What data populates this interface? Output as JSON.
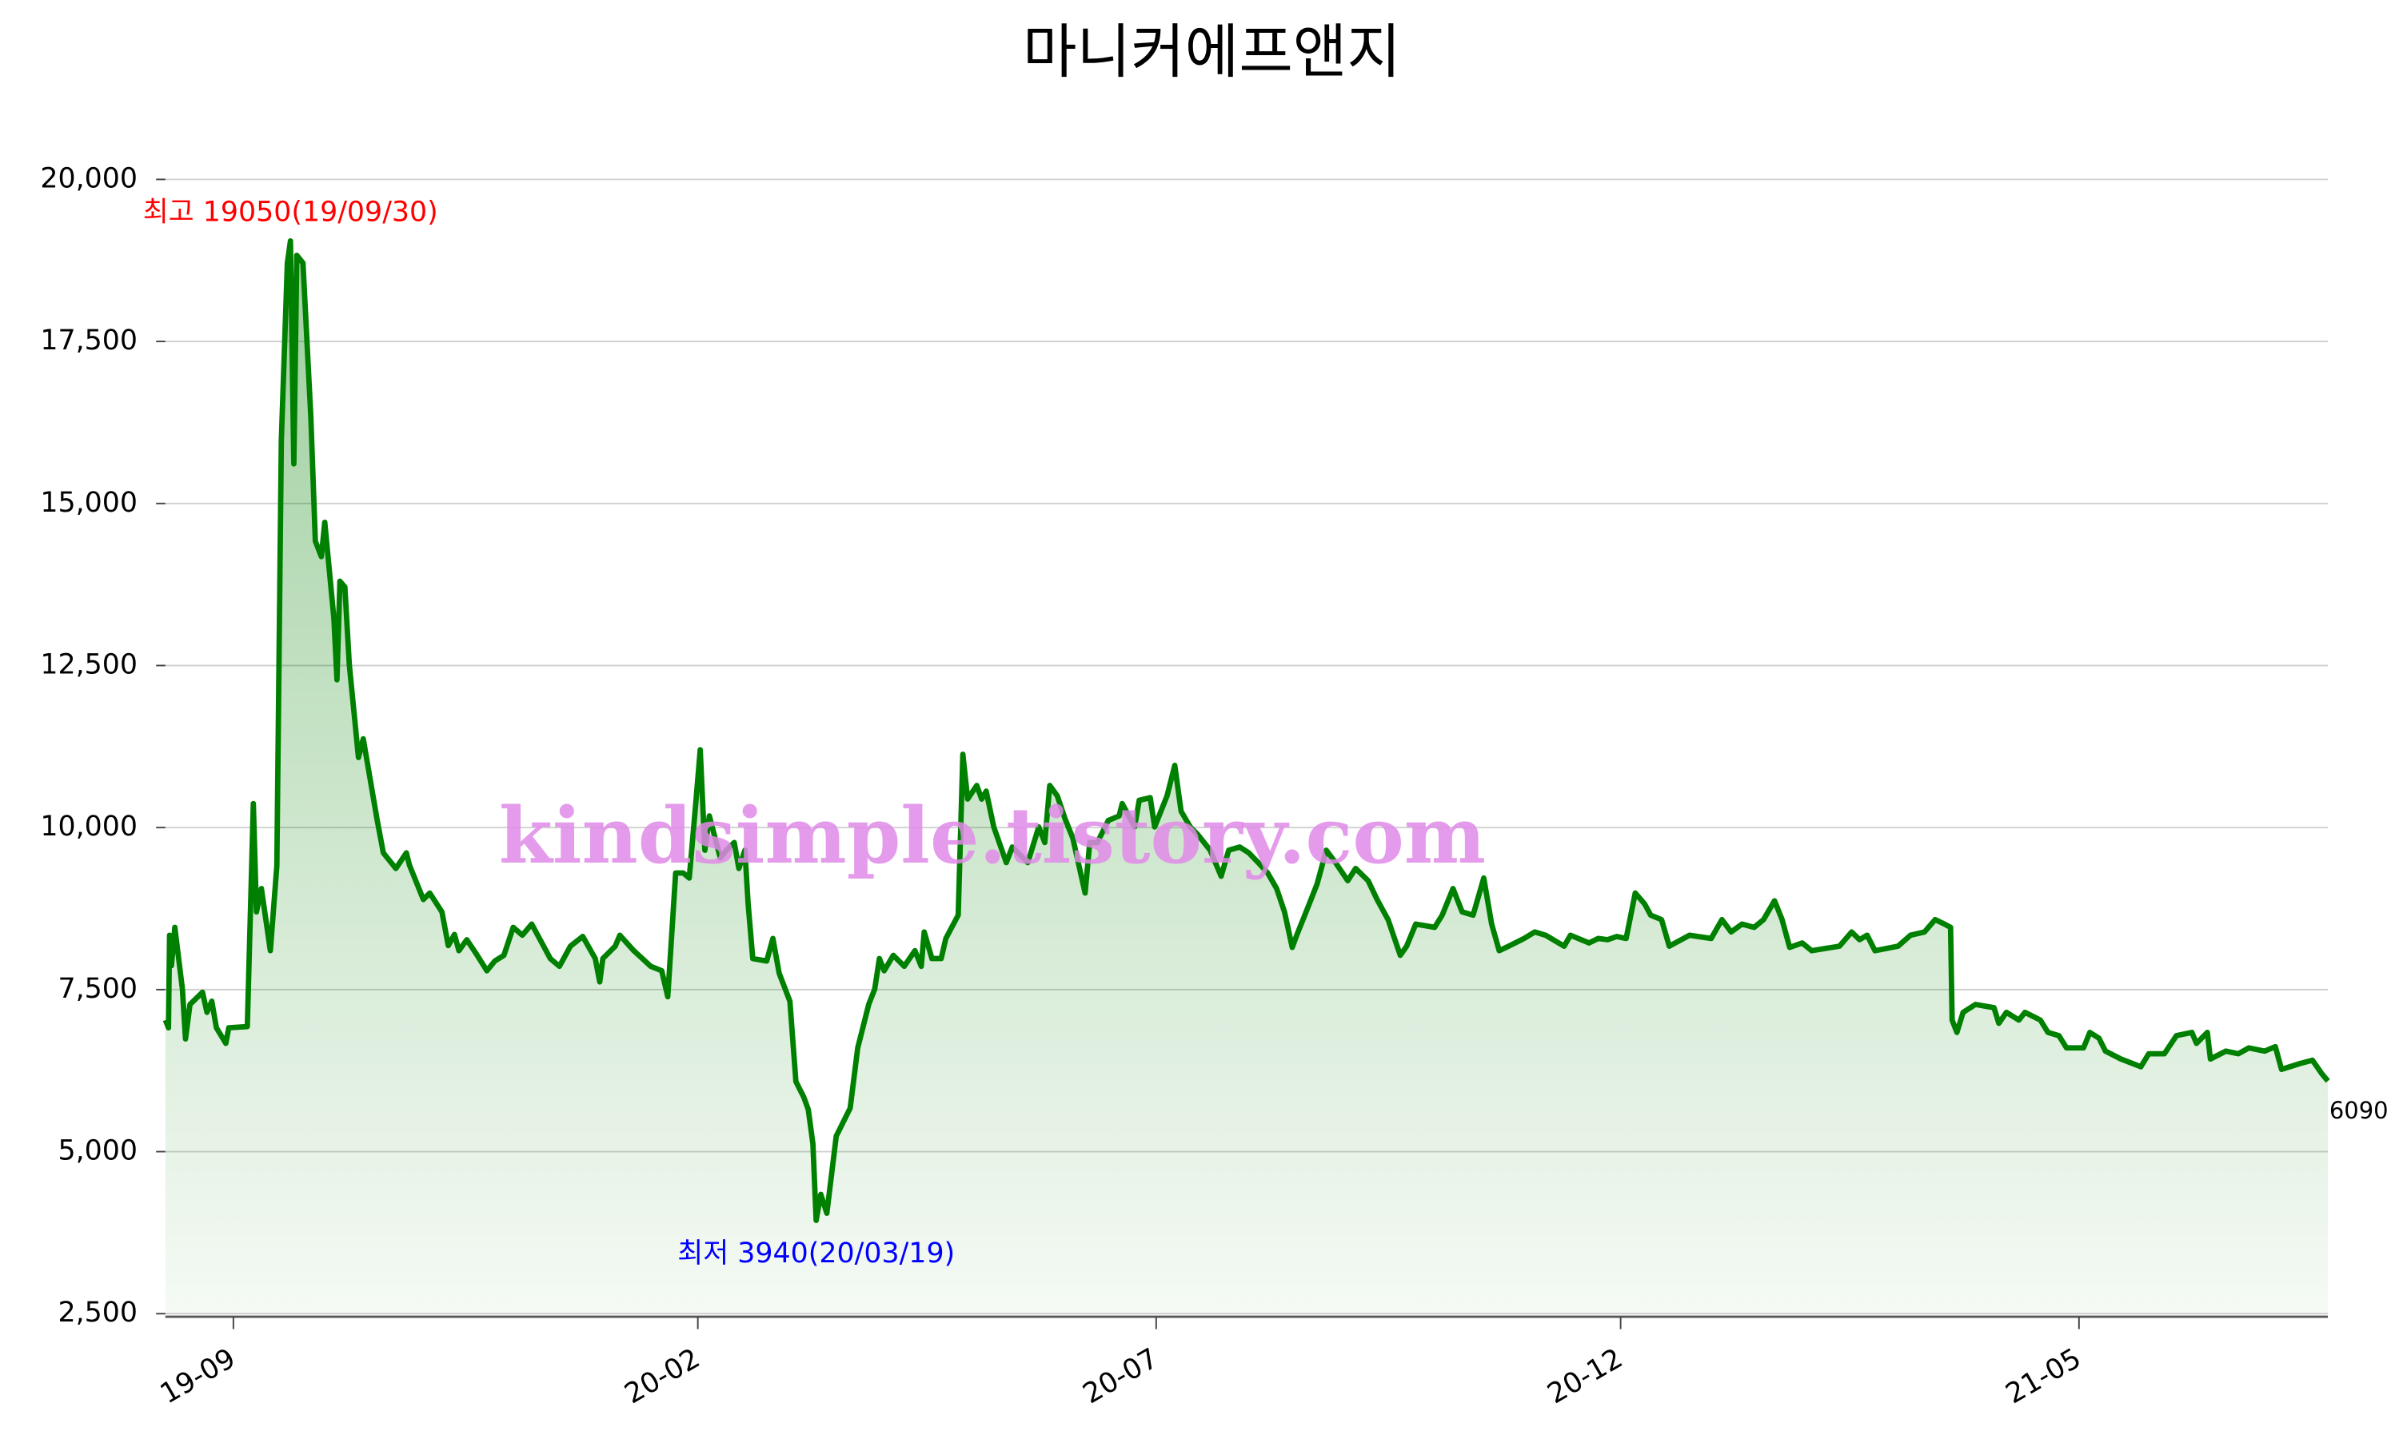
{
  "chart_data": {
    "type": "area-line",
    "title": "마니커에프앤지",
    "watermark": "kindsimple.tistory.com",
    "x": [
      -22.4,
      -21.4,
      -21.0,
      -20.4,
      -19.3,
      -16.8,
      -15.8,
      -14.3,
      -10.2,
      -8.7,
      -7.1,
      -5.6,
      -2.5,
      -1.5,
      4.6,
      6.6,
      7.6,
      9.2,
      12.2,
      14.3,
      15.8,
      17.8,
      18.8,
      19.9,
      20.9,
      22.9,
      25.5,
      27.0,
      29.0,
      30.1,
      33.1,
      34.1,
      35.1,
      36.7,
      38.2,
      41.2,
      42.8,
      47.3,
      49.4,
      53.5,
      57.0,
      58.0,
      62.6,
      64.7,
      68.7,
      70.8,
      72.8,
      74.3,
      76.9,
      79.9,
      83.5,
      86.1,
      89.1,
      92.2,
      95.2,
      98.3,
      104.4,
      107.4,
      111.0,
      115.1,
      119.2,
      120.7,
      121.7,
      125.8,
      127.3,
      131.9,
      137.5,
      141.1,
      143.1,
      145.7,
      148.2,
      150.2,
      152.3,
      153.8,
      155.3,
      156.8,
      160.4,
      162.4,
      165.0,
      166.5,
      168.5,
      169.6,
      171.1,
      175.7,
      177.7,
      179.8,
      183.3,
      185.3,
      187.9,
      189.4,
      190.9,
      192.0,
      193.5,
      195.5,
      198.6,
      203.2,
      205.7,
      209.3,
      211.3,
      212.8,
      214.4,
      217.4,
      221.0,
      224.5,
      226.6,
      227.6,
      230.1,
      233.2,
      234.7,
      238.8,
      240.3,
      241.9,
      244.9,
      246.5,
      248.0,
      250.5,
      254.6,
      256.6,
      261.7,
      265.3,
      267.3,
      268.9,
      271.4,
      274.0,
      276.5,
      280.6,
      282.1,
      284.6,
      288.2,
      291.8,
      292.8,
      296.9,
      298.4,
      302.0,
      303.5,
      307.6,
      310.1,
      312.2,
      315.2,
      317.7,
      321.8,
      325.4,
      327.9,
      331.5,
      334.5,
      337.6,
      340.7,
      343.7,
      346.3,
      348.8,
      350.3,
      354.4,
      357.0,
      360.0,
      363.1,
      367.1,
      369.7,
      373.8,
      376.8,
      380.4,
      384.4,
      386.5,
      389.5,
      395.7,
      398.2,
      401.8,
      404.8,
      408.4,
      411.9,
      414.5,
      417.0,
      420.1,
      425.2,
      428.7,
      432.3,
      438.4,
      440.5,
      446.6,
      449.6,
      452.7,
      455.7,
      458.8,
      461.8,
      464.9,
      466.9,
      470.5,
      473.0,
      479.7,
      486.8,
      490.4,
      493.4,
      497.0,
      501.0,
      504.1,
      507.7,
      510.2,
      512.7,
      516.8,
      519.9,
      529.1,
      533.1,
      535.7,
      538.2,
      540.8,
      548.4,
      552.5,
      557.1,
      560.6,
      563.7,
      565.7,
      566.2,
      567.8,
      569.8,
      573.9,
      580.0,
      581.6,
      584.1,
      588.2,
      590.2,
      595.3,
      597.8,
      601.4,
      603.9,
      609.5,
      611.6,
      614.6,
      616.7,
      621.8,
      628.4,
      631.0,
      636.1,
      640.1,
      645.2,
      646.7,
      650.3,
      651.3,
      656.4,
      660.5,
      664.0,
      669.1,
      672.7,
      674.7,
      680.9,
      684.9,
      688.0,
      690.0
    ],
    "series": [
      {
        "color": "#008000",
        "values": [
          7030,
          6910,
          8340,
          7870,
          8460,
          7510,
          6740,
          7270,
          7460,
          7150,
          7320,
          6910,
          6670,
          6910,
          6930,
          10370,
          8700,
          9060,
          8100,
          9410,
          15970,
          18710,
          19050,
          15610,
          18830,
          18710,
          16330,
          14420,
          14180,
          14710,
          13230,
          12280,
          13800,
          13710,
          12510,
          11080,
          11370,
          10130,
          9610,
          9370,
          9610,
          9420,
          8890,
          8990,
          8700,
          8180,
          8350,
          8100,
          8270,
          8060,
          7790,
          7940,
          8030,
          8460,
          8340,
          8510,
          7980,
          7860,
          8170,
          8320,
          7980,
          7620,
          7980,
          8170,
          8340,
          8100,
          7860,
          7790,
          7390,
          9300,
          9300,
          9220,
          10370,
          11200,
          9650,
          10180,
          9530,
          9650,
          9770,
          9370,
          9650,
          8820,
          7980,
          7940,
          8290,
          7750,
          7320,
          6080,
          5840,
          5650,
          5120,
          3940,
          4340,
          4050,
          5240,
          5670,
          6600,
          7270,
          7510,
          7980,
          7790,
          8030,
          7860,
          8100,
          7860,
          8390,
          7980,
          7980,
          8290,
          8650,
          11130,
          10440,
          10650,
          10440,
          10560,
          10010,
          9460,
          9700,
          9460,
          10010,
          9770,
          10650,
          10490,
          10130,
          9840,
          8990,
          9770,
          9770,
          10110,
          10180,
          10370,
          10010,
          10420,
          10460,
          10010,
          10490,
          10960,
          10250,
          10010,
          9890,
          9650,
          9250,
          9650,
          9700,
          9610,
          9460,
          9300,
          9060,
          8700,
          8150,
          8340,
          8820,
          9130,
          9650,
          9460,
          9180,
          9370,
          9180,
          8890,
          8580,
          8030,
          8170,
          8510,
          8460,
          8650,
          9060,
          8700,
          8650,
          9220,
          8510,
          8100,
          8170,
          8290,
          8390,
          8340,
          8170,
          8340,
          8220,
          8290,
          8270,
          8320,
          8290,
          8990,
          8820,
          8650,
          8580,
          8170,
          8340,
          8290,
          8580,
          8390,
          8510,
          8460,
          8580,
          8870,
          8580,
          8150,
          8220,
          8100,
          8170,
          8390,
          8270,
          8340,
          8100,
          8170,
          8340,
          8390,
          8580,
          8510,
          8460,
          7030,
          6840,
          7150,
          7270,
          7220,
          6980,
          7150,
          7030,
          7150,
          7030,
          6840,
          6790,
          6600,
          6600,
          6840,
          6750,
          6550,
          6430,
          6310,
          6510,
          6510,
          6790,
          6840,
          6670,
          6840,
          6430,
          6550,
          6510,
          6600,
          6550,
          6620,
          6270,
          6360,
          6410,
          6200,
          6090
        ]
      }
    ],
    "xlim": [
      -22.4,
      690.0
    ],
    "xticks": [
      {
        "value": 0,
        "label": "19-09"
      },
      {
        "value": 153,
        "label": "20-02"
      },
      {
        "value": 304,
        "label": "20-07"
      },
      {
        "value": 457,
        "label": "20-12"
      },
      {
        "value": 608,
        "label": "21-05"
      }
    ],
    "ylim": [
      2500,
      20000
    ],
    "yticks": [
      {
        "value": 2500,
        "label": "2,500"
      },
      {
        "value": 5000,
        "label": "5,000"
      },
      {
        "value": 7500,
        "label": "7,500"
      },
      {
        "value": 10000,
        "label": "10,000"
      },
      {
        "value": 12500,
        "label": "12,500"
      },
      {
        "value": 15000,
        "label": "15,000"
      },
      {
        "value": 17500,
        "label": "17,500"
      },
      {
        "value": 20000,
        "label": "20,000"
      }
    ],
    "grid": true,
    "annotations": [
      {
        "text": "최고 19050(19/09/30)",
        "color": "#ff0000"
      },
      {
        "text": "최저 3940(20/03/19)",
        "color": "#0000ff"
      }
    ]
  }
}
